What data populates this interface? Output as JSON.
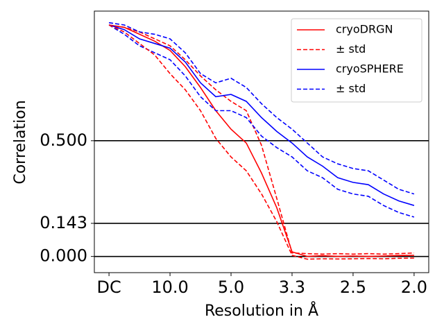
{
  "chart_data": {
    "type": "line",
    "xlabel": "Resolution in Å",
    "ylabel": "Correlation",
    "x": [
      0,
      0.025,
      0.05,
      0.075,
      0.1,
      0.125,
      0.15,
      0.175,
      0.2,
      0.225,
      0.25,
      0.275,
      0.3,
      0.325,
      0.35,
      0.375,
      0.4,
      0.425,
      0.45,
      0.475,
      0.5
    ],
    "xlim": [
      -0.024,
      0.524
    ],
    "xticks": [
      {
        "value": 0,
        "label": "DC"
      },
      {
        "value": 0.1,
        "label": "10.0"
      },
      {
        "value": 0.2,
        "label": "5.0"
      },
      {
        "value": 0.3,
        "label": "3.3"
      },
      {
        "value": 0.4,
        "label": "2.5"
      },
      {
        "value": 0.5,
        "label": "2.0"
      }
    ],
    "ylim": [
      -0.07,
      1.06
    ],
    "yticks": [
      {
        "value": 0,
        "label": "0.000"
      },
      {
        "value": 0.143,
        "label": "0.143"
      },
      {
        "value": 0.5,
        "label": "0.500"
      }
    ],
    "grid": true,
    "legend": "upper right",
    "series": [
      {
        "name": "cryoDRGN",
        "color": "#ff0000",
        "dashed": false,
        "values": [
          1.0,
          0.99,
          0.96,
          0.93,
          0.89,
          0.82,
          0.73,
          0.63,
          0.55,
          0.49,
          0.36,
          0.21,
          0.02,
          0.0,
          0.003,
          0.0,
          0.002,
          0.0,
          0.002,
          0.004,
          0.005
        ]
      },
      {
        "name": "± std",
        "color": "#ff0000",
        "dashed": true,
        "values": [
          1.0,
          0.99,
          0.97,
          0.94,
          0.91,
          0.85,
          0.78,
          0.72,
          0.67,
          0.63,
          0.48,
          0.25,
          0.015,
          0.012,
          0.01,
          0.012,
          0.01,
          0.012,
          0.01,
          0.012,
          0.015
        ]
      },
      {
        "name": "cryoSPHERE",
        "color": "#0000ff",
        "dashed": false,
        "values": [
          1.0,
          0.98,
          0.94,
          0.92,
          0.9,
          0.84,
          0.75,
          0.69,
          0.7,
          0.67,
          0.6,
          0.54,
          0.49,
          0.43,
          0.39,
          0.34,
          0.32,
          0.31,
          0.27,
          0.24,
          0.22
        ]
      },
      {
        "name": "± std",
        "color": "#0000ff",
        "dashed": true,
        "values": [
          1.01,
          1.0,
          0.97,
          0.96,
          0.94,
          0.88,
          0.79,
          0.75,
          0.77,
          0.73,
          0.66,
          0.6,
          0.55,
          0.49,
          0.43,
          0.4,
          0.38,
          0.37,
          0.33,
          0.29,
          0.27
        ]
      },
      {
        "name": "± std",
        "color": "#0000ff",
        "dashed": true,
        "values": [
          1.0,
          0.96,
          0.91,
          0.88,
          0.85,
          0.78,
          0.69,
          0.63,
          0.63,
          0.6,
          0.52,
          0.47,
          0.43,
          0.37,
          0.34,
          0.29,
          0.27,
          0.26,
          0.22,
          0.19,
          0.17
        ]
      },
      {
        "name": "± std",
        "color": "#ff0000",
        "dashed": true,
        "values": [
          1.0,
          0.97,
          0.92,
          0.87,
          0.79,
          0.72,
          0.63,
          0.51,
          0.43,
          0.37,
          0.27,
          0.15,
          0.005,
          -0.012,
          -0.01,
          -0.011,
          -0.01,
          -0.009,
          -0.01,
          -0.008,
          -0.007
        ]
      }
    ]
  }
}
